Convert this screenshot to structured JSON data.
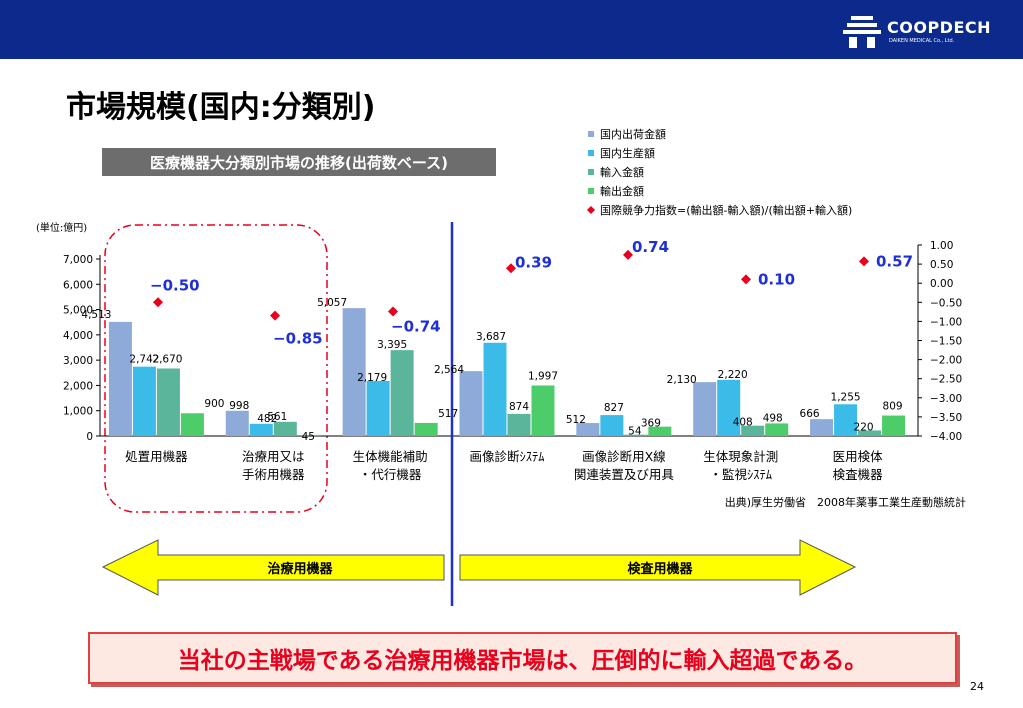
{
  "header": {
    "logo_text": "COOPDECH",
    "logo_sub": "DAIKEN MEDICAL Co., Ltd."
  },
  "page": {
    "title": "市場規模(国内:分類別)",
    "subtitle": "医療機器大分類別市場の推移(出荷数ベース)",
    "conclusion": "当社の主戦場である治療用機器市場は、圧倒的に輸入超過である。",
    "page_number": "24",
    "source": "出典)厚生労働省　2008年薬事工業生産動態統計",
    "group_left": "治療用機器",
    "group_right": "検査用機器"
  },
  "chart_data": {
    "type": "bar",
    "unit_label": "(単位:億円)",
    "categories": [
      [
        "処置用機器"
      ],
      [
        "治療用又は",
        "手術用機器"
      ],
      [
        "生体機能補助",
        "・代行機器"
      ],
      [
        "画像診断ｼｽﾃﾑ"
      ],
      [
        "画像診断用X線",
        "関連装置及び用具"
      ],
      [
        "生体現象計測",
        "・監視ｼｽﾃﾑ"
      ],
      [
        "医用検体",
        "検査機器"
      ]
    ],
    "series": [
      {
        "name": "国内出荷金額",
        "color": "#8eaad8",
        "values": [
          4513,
          998,
          5057,
          2564,
          512,
          2130,
          666
        ]
      },
      {
        "name": "国内生産額",
        "color": "#3bbce8",
        "values": [
          2742,
          482,
          2179,
          3687,
          827,
          2220,
          1255
        ]
      },
      {
        "name": "輸入金額",
        "color": "#5ab59a",
        "values": [
          2670,
          561,
          3395,
          874,
          54,
          408,
          220
        ]
      },
      {
        "name": "輸出金額",
        "color": "#4dcc6a",
        "values": [
          900,
          45,
          517,
          1997,
          369,
          498,
          809
        ]
      }
    ],
    "value_labels": [
      [
        "4,513",
        "998",
        "5,057",
        "2,564",
        "512",
        "2,130",
        "666"
      ],
      [
        "2,742",
        "482",
        "2,179",
        "3,687",
        "827",
        "2,220",
        "1,255"
      ],
      [
        "2,670",
        "561",
        "3,395",
        "874",
        "54",
        "408",
        "220"
      ],
      [
        "900",
        "45",
        "517",
        "1,997",
        "369",
        "498",
        "809"
      ]
    ],
    "index_series": {
      "name": "国際競争力指数=(輸出額-輸入額)/(輸出額+輸入額)",
      "color": "#e8001c",
      "values": [
        -0.5,
        -0.85,
        -0.74,
        0.39,
        0.74,
        0.1,
        0.57
      ],
      "labels": [
        "−0.50",
        "−0.85",
        "−0.74",
        "0.39",
        "0.74",
        "0.10",
        "0.57"
      ]
    },
    "y_left": {
      "min": 0,
      "max": 7000,
      "ticks": [
        "0",
        "1,000",
        "2,000",
        "3,000",
        "4,000",
        "5,000",
        "6,000",
        "7,000"
      ]
    },
    "y_right": {
      "min": -4.0,
      "max": 1.0,
      "ticks": [
        "1.00",
        "0.50",
        "0.00",
        "−0.50",
        "−1.00",
        "−1.50",
        "−2.00",
        "−2.50",
        "−3.00",
        "−3.50",
        "−4.00"
      ]
    },
    "legend_placement": "top-right"
  }
}
